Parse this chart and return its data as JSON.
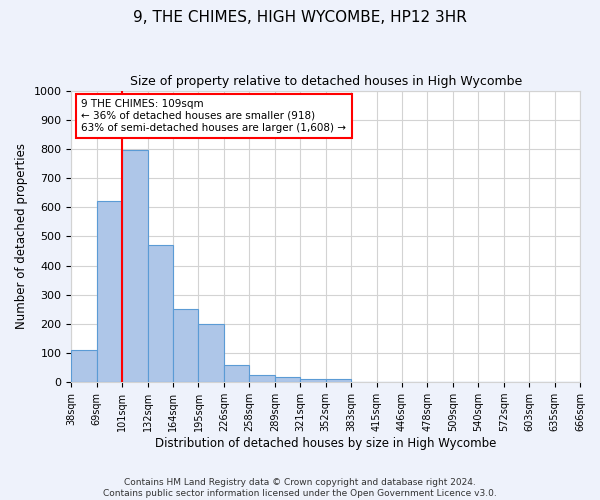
{
  "title": "9, THE CHIMES, HIGH WYCOMBE, HP12 3HR",
  "subtitle": "Size of property relative to detached houses in High Wycombe",
  "xlabel": "Distribution of detached houses by size in High Wycombe",
  "ylabel": "Number of detached properties",
  "bar_values": [
    110,
    620,
    795,
    470,
    250,
    200,
    60,
    25,
    18,
    12,
    10,
    0,
    0,
    0,
    0,
    0,
    0,
    0,
    0,
    0
  ],
  "bin_labels": [
    "38sqm",
    "69sqm",
    "101sqm",
    "132sqm",
    "164sqm",
    "195sqm",
    "226sqm",
    "258sqm",
    "289sqm",
    "321sqm",
    "352sqm",
    "383sqm",
    "415sqm",
    "446sqm",
    "478sqm",
    "509sqm",
    "540sqm",
    "572sqm",
    "603sqm",
    "635sqm",
    "666sqm"
  ],
  "bar_color": "#aec6e8",
  "bar_edge_color": "#5b9bd5",
  "annotation_text_line1": "9 THE CHIMES: 109sqm",
  "annotation_text_line2": "← 36% of detached houses are smaller (918)",
  "annotation_text_line3": "63% of semi-detached houses are larger (1,608) →",
  "annotation_box_color": "white",
  "annotation_box_edge": "red",
  "vline_color": "red",
  "ylim": [
    0,
    1000
  ],
  "yticks": [
    0,
    100,
    200,
    300,
    400,
    500,
    600,
    700,
    800,
    900,
    1000
  ],
  "footer_line1": "Contains HM Land Registry data © Crown copyright and database right 2024.",
  "footer_line2": "Contains public sector information licensed under the Open Government Licence v3.0.",
  "bg_color": "#eef2fb",
  "plot_bg_color": "#ffffff"
}
